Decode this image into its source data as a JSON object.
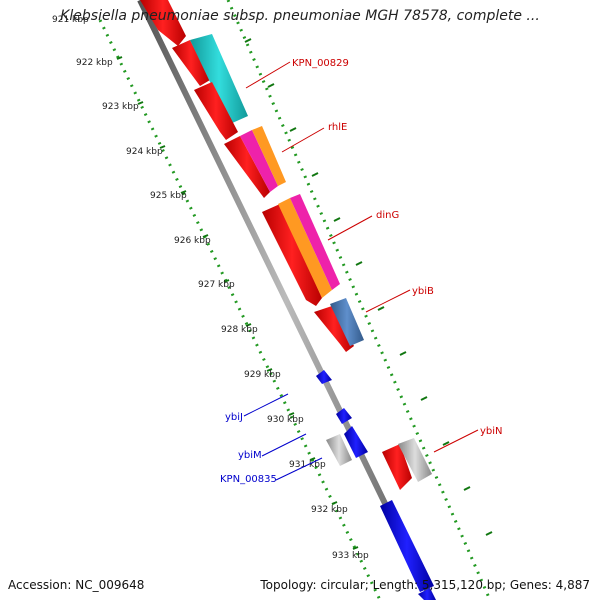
{
  "title": "Klebsiella pneumoniae subsp. pneumoniae MGH 78578, complete ...",
  "footer": {
    "accession": "Accession: NC_009648",
    "topology": "Topology: circular; Length: 5,315,120 bp; Genes: 4,887"
  },
  "ticks": [
    "921 kbp",
    "922 kbp",
    "923 kbp",
    "924 kbp",
    "925 kbp",
    "926 kbp",
    "927 kbp",
    "928 kbp",
    "929 kbp",
    "930 kbp",
    "931 kbp",
    "932 kbp",
    "933 kbp"
  ],
  "gene_labels": [
    {
      "text": "KPN_00829",
      "color": "#cc0000"
    },
    {
      "text": "rhlE",
      "color": "#cc0000"
    },
    {
      "text": "dinG",
      "color": "#cc0000"
    },
    {
      "text": "ybiB",
      "color": "#cc0000"
    },
    {
      "text": "ybiN",
      "color": "#cc0000"
    },
    {
      "text": "ybiJ",
      "color": "#0000cc"
    },
    {
      "text": "ybiM",
      "color": "#0000cc"
    },
    {
      "text": "KPN_00835",
      "color": "#0000cc"
    }
  ],
  "colors": {
    "forward_cds": "#ff0000",
    "reverse_cds": "#0000ff",
    "backbone": "#888888",
    "dotted_ring": "#229922",
    "cyan_feature": "#22cccc",
    "magenta_feature": "#ee22aa",
    "orange_feature": "#ff9922",
    "steelblue_feature": "#4477bb",
    "grey_feature": "#bbbbbb"
  }
}
